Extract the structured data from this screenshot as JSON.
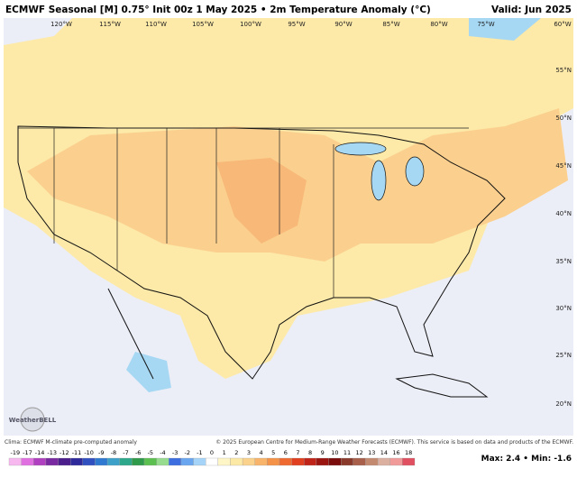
{
  "header": {
    "title": "ECMWF Seasonal [M] 0.75° Init 00z 1 May 2025 • 2m Temperature Anomaly (°C)",
    "valid": "Valid: Jun 2025"
  },
  "map": {
    "lon_labels": [
      "120°W",
      "115°W",
      "110°W",
      "105°W",
      "100°W",
      "95°W",
      "90°W",
      "85°W",
      "80°W",
      "75°W",
      "60°W"
    ],
    "lat_labels": [
      "55°N",
      "50°N",
      "45°N",
      "40°N",
      "35°N",
      "30°N",
      "25°N",
      "20°N"
    ],
    "logo": "WeatherBELL"
  },
  "footer": {
    "clima": "Clima: ECMWF M-climate pre-computed anomaly",
    "copyright": "© 2025 European Centre for Medium-Range Weather Forecasts (ECMWF). This service is based on data and products of the ECMWF.",
    "summary": "Max: 2.4 • Min: -1.6"
  },
  "legend": {
    "values": [
      -19,
      -17,
      -14,
      -13,
      -12,
      -11,
      -10,
      -9,
      -8,
      -7,
      -6,
      -5,
      -4,
      -3,
      -2,
      -1,
      0,
      1,
      2,
      3,
      4,
      5,
      6,
      7,
      8,
      9,
      10,
      11,
      12,
      13,
      14,
      16,
      18
    ],
    "colors": [
      "#f7b8f0",
      "#e070e0",
      "#b040c0",
      "#7a2aa0",
      "#4b1e8c",
      "#2e2a9c",
      "#3050c0",
      "#2f7ad0",
      "#3ca0c8",
      "#2ea88a",
      "#2e9a4a",
      "#5cc050",
      "#98dc90",
      "#3c6ee0",
      "#6aa6f0",
      "#a6d4f8",
      "#ffffff",
      "#fff6c8",
      "#fde9a6",
      "#fbd28c",
      "#f8b46a",
      "#f49248",
      "#ee6a30",
      "#e04020",
      "#c02418",
      "#9a1410",
      "#7a0c0c",
      "#8a3a2a",
      "#a8604a",
      "#c48a70",
      "#dcb0a0",
      "#f09a9a",
      "#e05060"
    ]
  }
}
